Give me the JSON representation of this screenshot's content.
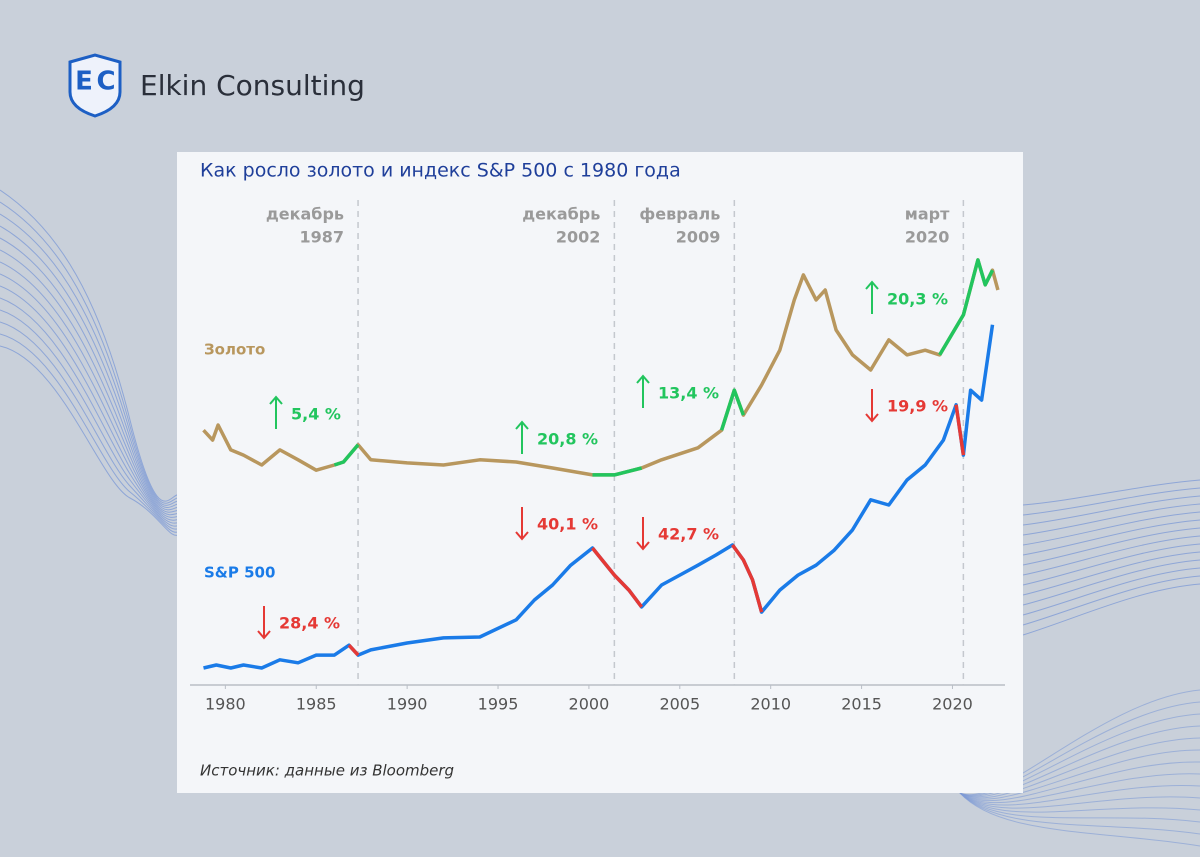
{
  "brand": {
    "logo_left": "E",
    "logo_right": "C",
    "name": "Elkin Consulting"
  },
  "chart_data": {
    "type": "line",
    "title": "Как росло золото и индекс S&P 500 с 1980 года",
    "source": "Источник: данные из Bloomberg",
    "xlim": [
      1978,
      2023
    ],
    "ylim": [
      0,
      100
    ],
    "xticks": [
      1980,
      1985,
      1990,
      1995,
      2000,
      2005,
      2010,
      2015,
      2020
    ],
    "events": [
      {
        "month": "декабрь",
        "year": "1987",
        "x": 1987.3
      },
      {
        "month": "декабрь",
        "year": "2002",
        "x": 2001.4
      },
      {
        "month": "февраль",
        "year": "2009",
        "x": 2008.0
      },
      {
        "month": "март",
        "year": "2020",
        "x": 2020.6
      }
    ],
    "series": [
      {
        "name": "Золото",
        "color": "#b8975e",
        "x": [
          1978.8,
          1979.3,
          1979.6,
          1980.3,
          1981,
          1982,
          1983,
          1984,
          1985,
          1986,
          1986.5,
          1987.3,
          1988,
          1990,
          1992,
          1994,
          1996,
          1998,
          2000.2,
          2001.4,
          2002.9,
          2004,
          2006,
          2007.3,
          2008,
          2008.5,
          2009.5,
          2010.5,
          2011.3,
          2011.8,
          2012.5,
          2013,
          2013.6,
          2014.5,
          2015.5,
          2016.5,
          2017.5,
          2018.5,
          2019.3,
          2020.6,
          2021.4,
          2021.8,
          2022.2,
          2022.5
        ],
        "values": [
          58.1,
          55.8,
          59.3,
          53.5,
          52.3,
          50,
          53.5,
          51.2,
          48.8,
          50,
          50.7,
          54.7,
          51.2,
          50.5,
          50,
          51.2,
          50.7,
          49.3,
          47.7,
          47.7,
          49.3,
          51.2,
          54,
          58.1,
          67.4,
          61.6,
          68.6,
          76.7,
          88.4,
          94.2,
          88.4,
          90.7,
          81.4,
          75.6,
          72.1,
          79.1,
          75.6,
          76.7,
          75.6,
          84.9,
          97.7,
          91.9,
          95.3,
          90.7
        ],
        "highlights": [
          {
            "from": 1986,
            "to": 1987.3,
            "color": "#22c55e",
            "direction": "up",
            "label": "5,4 %"
          },
          {
            "from": 2000.2,
            "to": 2002.9,
            "color": "#22c55e",
            "direction": "up",
            "label": "20,8 %"
          },
          {
            "from": 2007.3,
            "to": 2008.5,
            "color": "#22c55e",
            "direction": "up",
            "label": "13,4 %"
          },
          {
            "from": 2019.3,
            "to": 2022.2,
            "color": "#22c55e",
            "direction": "up",
            "label": "20,3 %"
          }
        ]
      },
      {
        "name": "S&P 500",
        "color": "#1a7be8",
        "x": [
          1978.8,
          1979.5,
          1980.3,
          1981,
          1982,
          1983,
          1984,
          1985,
          1986,
          1986.8,
          1987.3,
          1988,
          1990,
          1992,
          1994,
          1996,
          1997,
          1998,
          1999,
          2000.2,
          2000.5,
          2001.4,
          2002.2,
          2002.9,
          2004,
          2005,
          2006,
          2007,
          2007.9,
          2008.5,
          2009,
          2009.5,
          2010.5,
          2011.5,
          2012.5,
          2013.5,
          2014.5,
          2015.5,
          2016.5,
          2017.5,
          2018.5,
          2019.5,
          2020.2,
          2020.6,
          2021,
          2021.6,
          2022.2
        ],
        "values": [
          2.8,
          3.5,
          2.8,
          3.5,
          2.8,
          4.7,
          4,
          5.8,
          5.8,
          8.1,
          5.8,
          7,
          8.6,
          9.8,
          10,
          14,
          18.6,
          22.1,
          26.7,
          30.7,
          29.1,
          24.4,
          20.9,
          17,
          22.1,
          24.4,
          26.7,
          29.1,
          31.4,
          27.9,
          23.3,
          15.8,
          20.9,
          24.4,
          26.7,
          30.2,
          34.9,
          41.9,
          40.7,
          46.5,
          50,
          55.8,
          64,
          52.3,
          67.4,
          65.1,
          82.6
        ],
        "highlights": [
          {
            "from": 1986.8,
            "to": 1987.3,
            "color": "#e53935",
            "direction": "down",
            "label": "28,4 %"
          },
          {
            "from": 2000.2,
            "to": 2002.9,
            "color": "#e53935",
            "direction": "down",
            "label": "40,1 %"
          },
          {
            "from": 2007.9,
            "to": 2009.5,
            "color": "#e53935",
            "direction": "down",
            "label": "42,7 %"
          },
          {
            "from": 2020.2,
            "to": 2020.6,
            "color": "#e53935",
            "direction": "down",
            "label": "19,9 %"
          }
        ]
      }
    ]
  }
}
